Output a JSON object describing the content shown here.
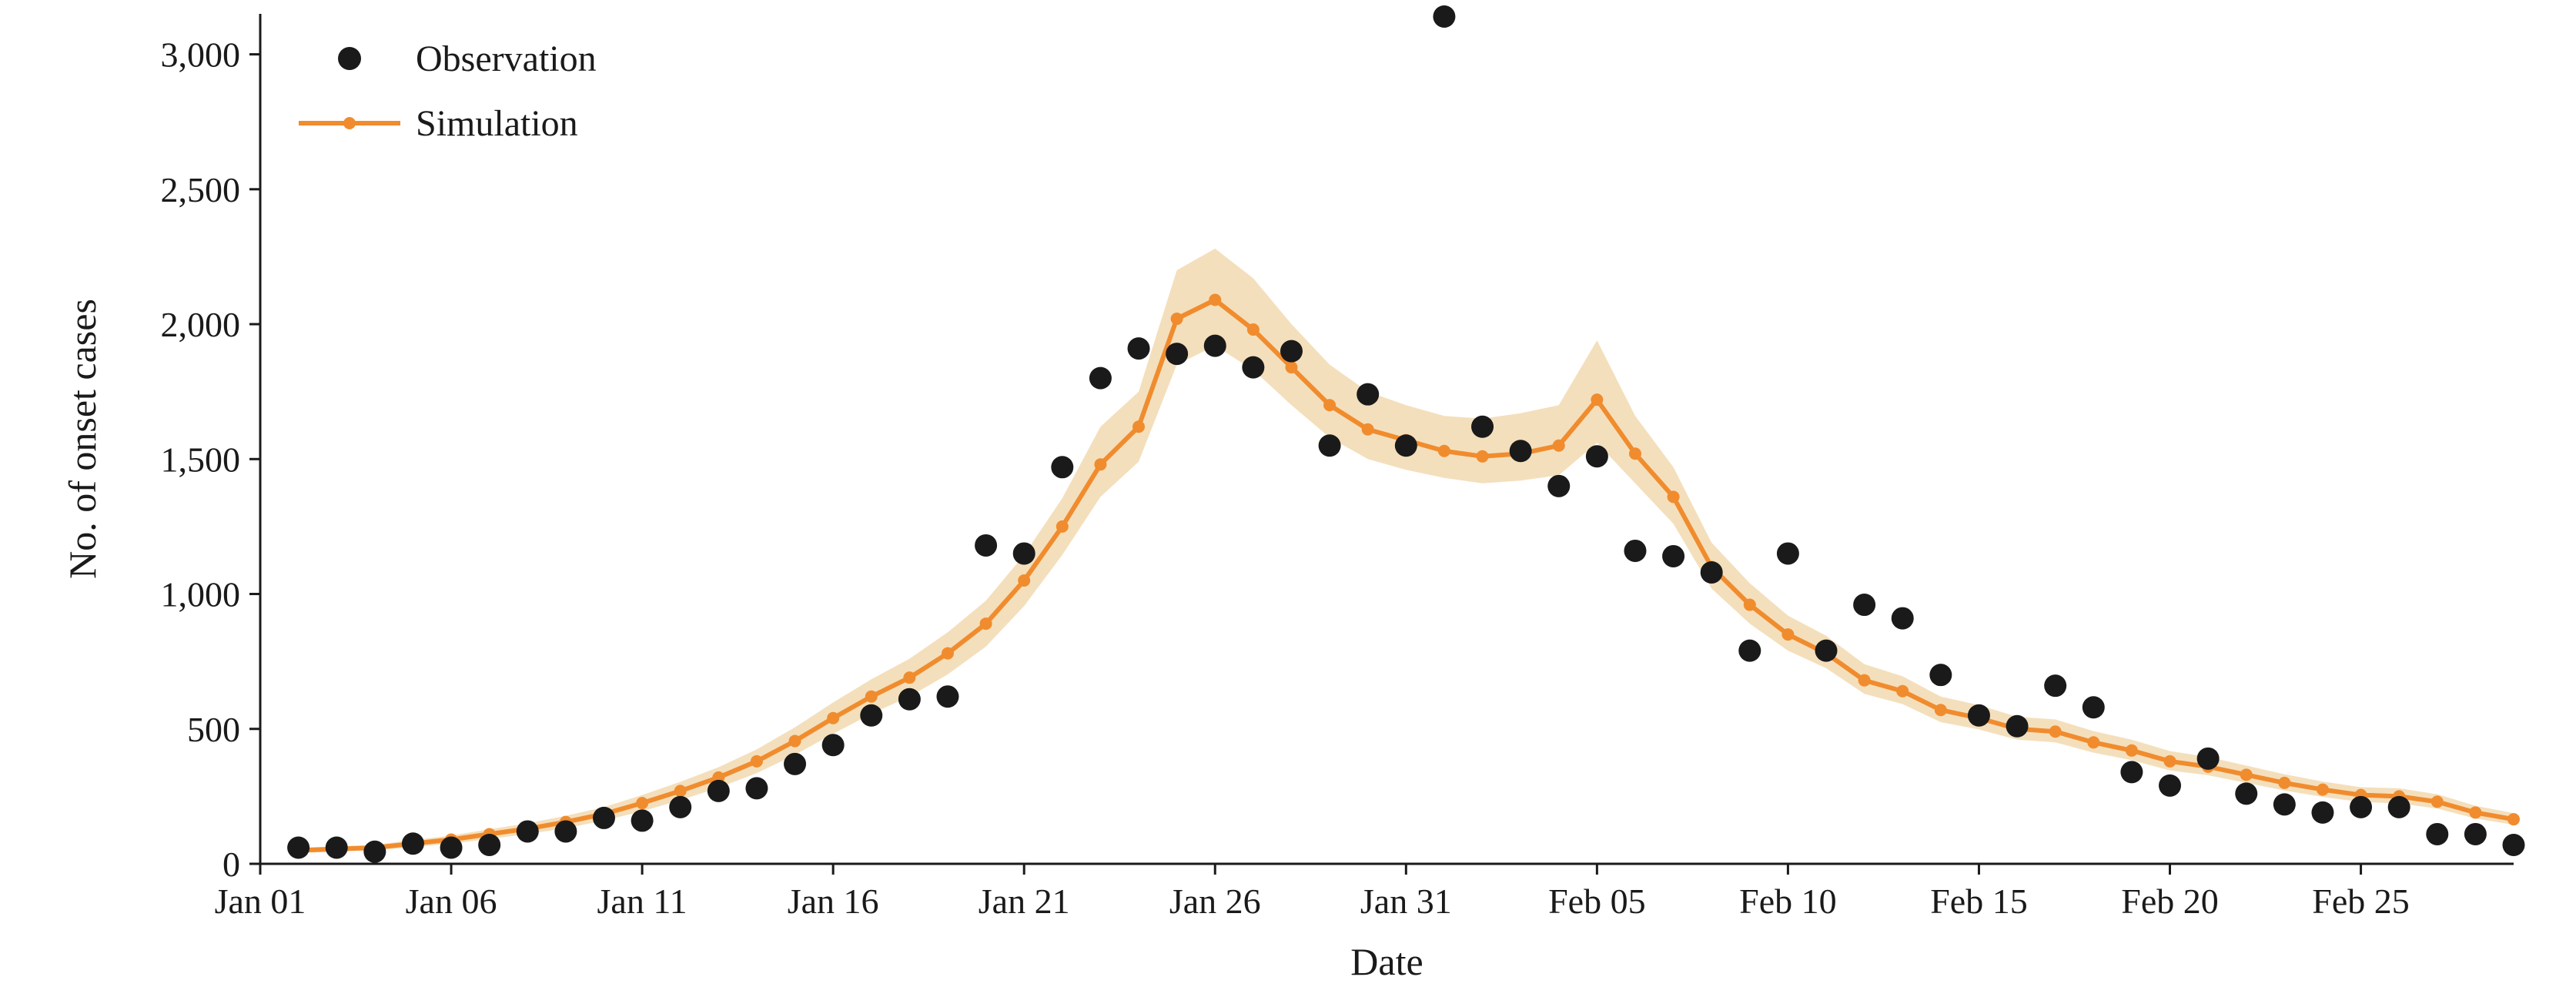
{
  "chart_data": {
    "type": "line",
    "xlabel": "Date",
    "ylabel": "No. of onset cases",
    "ylim": [
      0,
      3150
    ],
    "yticks": [
      0,
      500,
      1000,
      1500,
      2000,
      2500,
      3000
    ],
    "ytick_labels": [
      "0",
      "500",
      "1,000",
      "1,500",
      "2,000",
      "2,500",
      "3,000"
    ],
    "x_start": "Jan 01",
    "xticks": [
      {
        "date": "Jan 01",
        "label": "Jan 01"
      },
      {
        "date": "Jan 06",
        "label": "Jan 06"
      },
      {
        "date": "Jan 11",
        "label": "Jan 11"
      },
      {
        "date": "Jan 16",
        "label": "Jan 16"
      },
      {
        "date": "Jan 21",
        "label": "Jan 21"
      },
      {
        "date": "Jan 26",
        "label": "Jan 26"
      },
      {
        "date": "Jan 31",
        "label": "Jan 31"
      },
      {
        "date": "Feb 05",
        "label": "Feb 05"
      },
      {
        "date": "Feb 10",
        "label": "Feb 10"
      },
      {
        "date": "Feb 15",
        "label": "Feb 15"
      },
      {
        "date": "Feb 20",
        "label": "Feb 20"
      },
      {
        "date": "Feb 25",
        "label": "Feb 25"
      }
    ],
    "xlim": [
      "Jan 01",
      "Feb 29"
    ],
    "legend": {
      "position": "top-left",
      "entries": [
        "Observation",
        "Simulation"
      ]
    },
    "series": [
      {
        "name": "Observation",
        "kind": "scatter",
        "color": "#1a1a1a",
        "points": [
          {
            "x": "Jan 02",
            "y": 60
          },
          {
            "x": "Jan 03",
            "y": 60
          },
          {
            "x": "Jan 04",
            "y": 45
          },
          {
            "x": "Jan 05",
            "y": 75
          },
          {
            "x": "Jan 06",
            "y": 60
          },
          {
            "x": "Jan 07",
            "y": 70
          },
          {
            "x": "Jan 08",
            "y": 120
          },
          {
            "x": "Jan 09",
            "y": 120
          },
          {
            "x": "Jan 10",
            "y": 170
          },
          {
            "x": "Jan 11",
            "y": 160
          },
          {
            "x": "Jan 12",
            "y": 210
          },
          {
            "x": "Jan 13",
            "y": 270
          },
          {
            "x": "Jan 14",
            "y": 280
          },
          {
            "x": "Jan 15",
            "y": 370
          },
          {
            "x": "Jan 16",
            "y": 440
          },
          {
            "x": "Jan 17",
            "y": 550
          },
          {
            "x": "Jan 18",
            "y": 610
          },
          {
            "x": "Jan 19",
            "y": 620
          },
          {
            "x": "Jan 20",
            "y": 1180
          },
          {
            "x": "Jan 21",
            "y": 1150
          },
          {
            "x": "Jan 22",
            "y": 1470
          },
          {
            "x": "Jan 23",
            "y": 1800
          },
          {
            "x": "Jan 24",
            "y": 1910
          },
          {
            "x": "Jan 25",
            "y": 1890
          },
          {
            "x": "Jan 26",
            "y": 1920
          },
          {
            "x": "Jan 27",
            "y": 1840
          },
          {
            "x": "Jan 28",
            "y": 1900
          },
          {
            "x": "Jan 29",
            "y": 1550
          },
          {
            "x": "Jan 30",
            "y": 1740
          },
          {
            "x": "Jan 31",
            "y": 1550
          },
          {
            "x": "Feb 01",
            "y": 3140
          },
          {
            "x": "Feb 02",
            "y": 1620
          },
          {
            "x": "Feb 03",
            "y": 1530
          },
          {
            "x": "Feb 04",
            "y": 1400
          },
          {
            "x": "Feb 05",
            "y": 1510
          },
          {
            "x": "Feb 06",
            "y": 1160
          },
          {
            "x": "Feb 07",
            "y": 1140
          },
          {
            "x": "Feb 08",
            "y": 1080
          },
          {
            "x": "Feb 09",
            "y": 790
          },
          {
            "x": "Feb 10",
            "y": 1150
          },
          {
            "x": "Feb 11",
            "y": 790
          },
          {
            "x": "Feb 12",
            "y": 960
          },
          {
            "x": "Feb 13",
            "y": 910
          },
          {
            "x": "Feb 14",
            "y": 700
          },
          {
            "x": "Feb 15",
            "y": 550
          },
          {
            "x": "Feb 16",
            "y": 510
          },
          {
            "x": "Feb 17",
            "y": 660
          },
          {
            "x": "Feb 18",
            "y": 580
          },
          {
            "x": "Feb 19",
            "y": 340
          },
          {
            "x": "Feb 20",
            "y": 290
          },
          {
            "x": "Feb 21",
            "y": 390
          },
          {
            "x": "Feb 22",
            "y": 260
          },
          {
            "x": "Feb 23",
            "y": 220
          },
          {
            "x": "Feb 24",
            "y": 190
          },
          {
            "x": "Feb 25",
            "y": 210
          },
          {
            "x": "Feb 26",
            "y": 210
          },
          {
            "x": "Feb 27",
            "y": 110
          },
          {
            "x": "Feb 28",
            "y": 110
          },
          {
            "x": "Feb 29",
            "y": 70
          }
        ]
      },
      {
        "name": "Simulation",
        "kind": "line",
        "color": "#f08c2e",
        "band_color": "#f2d9b0",
        "points": [
          {
            "x": "Jan 02",
            "y": 50,
            "lo": 40,
            "hi": 60
          },
          {
            "x": "Jan 03",
            "y": 55,
            "lo": 45,
            "hi": 65
          },
          {
            "x": "Jan 04",
            "y": 60,
            "lo": 50,
            "hi": 70
          },
          {
            "x": "Jan 05",
            "y": 75,
            "lo": 62,
            "hi": 88
          },
          {
            "x": "Jan 06",
            "y": 90,
            "lo": 75,
            "hi": 105
          },
          {
            "x": "Jan 07",
            "y": 110,
            "lo": 92,
            "hi": 128
          },
          {
            "x": "Jan 08",
            "y": 130,
            "lo": 110,
            "hi": 150
          },
          {
            "x": "Jan 09",
            "y": 155,
            "lo": 132,
            "hi": 178
          },
          {
            "x": "Jan 10",
            "y": 185,
            "lo": 160,
            "hi": 210
          },
          {
            "x": "Jan 11",
            "y": 225,
            "lo": 195,
            "hi": 255
          },
          {
            "x": "Jan 12",
            "y": 270,
            "lo": 236,
            "hi": 304
          },
          {
            "x": "Jan 13",
            "y": 320,
            "lo": 282,
            "hi": 358
          },
          {
            "x": "Jan 14",
            "y": 380,
            "lo": 336,
            "hi": 424
          },
          {
            "x": "Jan 15",
            "y": 455,
            "lo": 404,
            "hi": 506
          },
          {
            "x": "Jan 16",
            "y": 540,
            "lo": 482,
            "hi": 598
          },
          {
            "x": "Jan 17",
            "y": 620,
            "lo": 556,
            "hi": 684
          },
          {
            "x": "Jan 18",
            "y": 690,
            "lo": 620,
            "hi": 760
          },
          {
            "x": "Jan 19",
            "y": 780,
            "lo": 702,
            "hi": 858
          },
          {
            "x": "Jan 20",
            "y": 890,
            "lo": 805,
            "hi": 975
          },
          {
            "x": "Jan 21",
            "y": 1050,
            "lo": 955,
            "hi": 1145
          },
          {
            "x": "Jan 22",
            "y": 1250,
            "lo": 1145,
            "hi": 1355
          },
          {
            "x": "Jan 23",
            "y": 1480,
            "lo": 1360,
            "hi": 1620
          },
          {
            "x": "Jan 24",
            "y": 1620,
            "lo": 1490,
            "hi": 1750
          },
          {
            "x": "Jan 25",
            "y": 2020,
            "lo": 1850,
            "hi": 2200
          },
          {
            "x": "Jan 26",
            "y": 2090,
            "lo": 1920,
            "hi": 2280
          },
          {
            "x": "Jan 27",
            "y": 1980,
            "lo": 1830,
            "hi": 2170
          },
          {
            "x": "Jan 28",
            "y": 1840,
            "lo": 1700,
            "hi": 2000
          },
          {
            "x": "Jan 29",
            "y": 1700,
            "lo": 1580,
            "hi": 1850
          },
          {
            "x": "Jan 30",
            "y": 1610,
            "lo": 1500,
            "hi": 1750
          },
          {
            "x": "Jan 31",
            "y": 1570,
            "lo": 1460,
            "hi": 1700
          },
          {
            "x": "Feb 01",
            "y": 1530,
            "lo": 1430,
            "hi": 1660
          },
          {
            "x": "Feb 02",
            "y": 1510,
            "lo": 1410,
            "hi": 1650
          },
          {
            "x": "Feb 03",
            "y": 1520,
            "lo": 1420,
            "hi": 1670
          },
          {
            "x": "Feb 04",
            "y": 1550,
            "lo": 1440,
            "hi": 1700
          },
          {
            "x": "Feb 05",
            "y": 1720,
            "lo": 1560,
            "hi": 1940
          },
          {
            "x": "Feb 06",
            "y": 1520,
            "lo": 1410,
            "hi": 1660
          },
          {
            "x": "Feb 07",
            "y": 1360,
            "lo": 1260,
            "hi": 1470
          },
          {
            "x": "Feb 08",
            "y": 1100,
            "lo": 1020,
            "hi": 1190
          },
          {
            "x": "Feb 09",
            "y": 960,
            "lo": 890,
            "hi": 1040
          },
          {
            "x": "Feb 10",
            "y": 850,
            "lo": 790,
            "hi": 920
          },
          {
            "x": "Feb 11",
            "y": 780,
            "lo": 725,
            "hi": 845
          },
          {
            "x": "Feb 12",
            "y": 680,
            "lo": 630,
            "hi": 740
          },
          {
            "x": "Feb 13",
            "y": 640,
            "lo": 592,
            "hi": 695
          },
          {
            "x": "Feb 14",
            "y": 570,
            "lo": 525,
            "hi": 620
          },
          {
            "x": "Feb 15",
            "y": 540,
            "lo": 498,
            "hi": 588
          },
          {
            "x": "Feb 16",
            "y": 500,
            "lo": 460,
            "hi": 545
          },
          {
            "x": "Feb 17",
            "y": 490,
            "lo": 450,
            "hi": 535
          },
          {
            "x": "Feb 18",
            "y": 450,
            "lo": 412,
            "hi": 492
          },
          {
            "x": "Feb 19",
            "y": 420,
            "lo": 384,
            "hi": 460
          },
          {
            "x": "Feb 20",
            "y": 380,
            "lo": 346,
            "hi": 418
          },
          {
            "x": "Feb 21",
            "y": 360,
            "lo": 328,
            "hi": 396
          },
          {
            "x": "Feb 22",
            "y": 330,
            "lo": 300,
            "hi": 364
          },
          {
            "x": "Feb 23",
            "y": 300,
            "lo": 272,
            "hi": 332
          },
          {
            "x": "Feb 24",
            "y": 275,
            "lo": 248,
            "hi": 305
          },
          {
            "x": "Feb 25",
            "y": 255,
            "lo": 229,
            "hi": 284
          },
          {
            "x": "Feb 26",
            "y": 250,
            "lo": 224,
            "hi": 280
          },
          {
            "x": "Feb 27",
            "y": 230,
            "lo": 205,
            "hi": 258
          },
          {
            "x": "Feb 28",
            "y": 190,
            "lo": 168,
            "hi": 215
          },
          {
            "x": "Feb 29",
            "y": 165,
            "lo": 145,
            "hi": 188
          }
        ]
      }
    ]
  }
}
